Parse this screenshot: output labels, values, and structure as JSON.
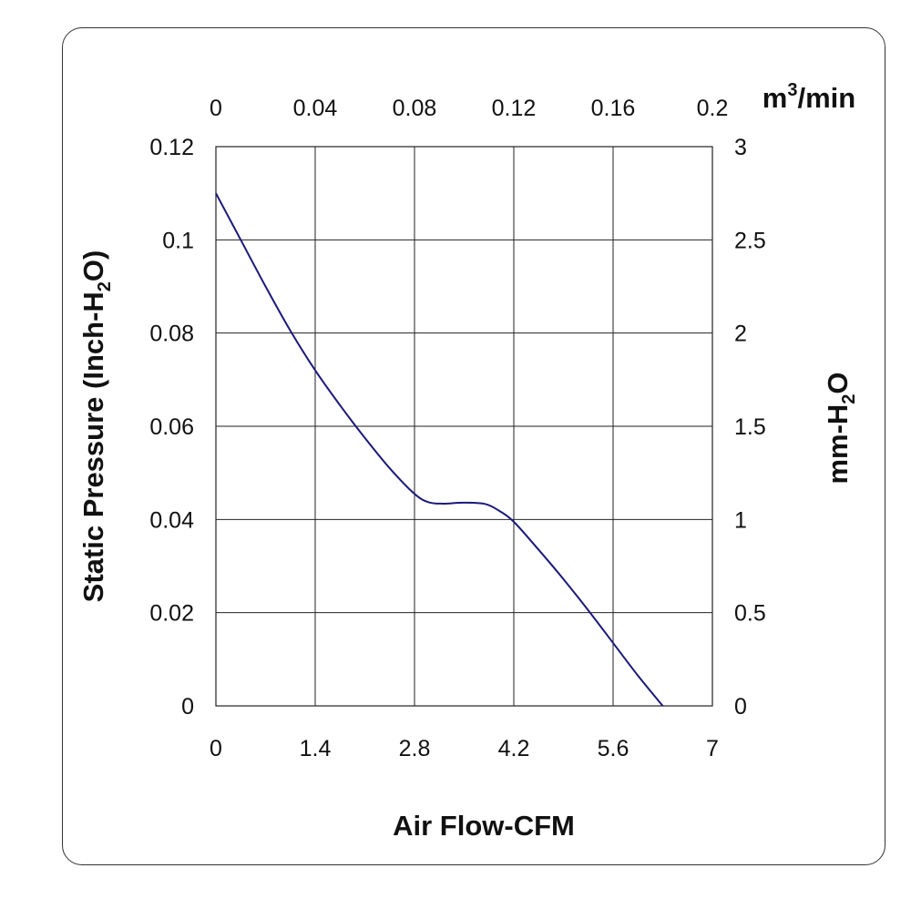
{
  "chart_data": {
    "type": "line",
    "title": "",
    "xlabel": "Air Flow-CFM",
    "ylabel_left": {
      "prefix": "Static Pressure (Inch-H",
      "sub": "2",
      "suffix": "O)"
    },
    "ylabel_right": {
      "prefix": "mm-H",
      "sub": "2",
      "suffix": "O"
    },
    "x2label": {
      "prefix": "m",
      "sup": "3",
      "suffix": "/min"
    },
    "x_ticks": [
      "0",
      "1.4",
      "2.8",
      "4.2",
      "5.6",
      "7"
    ],
    "x2_ticks": [
      "0",
      "0.04",
      "0.08",
      "0.12",
      "0.16",
      "0.2"
    ],
    "y_ticks": [
      "0",
      "0.02",
      "0.04",
      "0.06",
      "0.08",
      "0.1",
      "0.12"
    ],
    "y2_ticks": [
      "0",
      "0.5",
      "1",
      "1.5",
      "2",
      "2.5",
      "3"
    ],
    "xlim": [
      0,
      7
    ],
    "ylim": [
      0,
      0.12
    ],
    "grid": true,
    "line_color": "#1a1a7a",
    "series": [
      {
        "x": [
          0,
          0.35,
          0.7,
          1.05,
          1.4,
          1.75,
          2.1,
          2.45,
          2.8,
          3.0,
          3.2,
          3.5,
          3.8,
          4.0,
          4.2,
          4.55,
          4.9,
          5.25,
          5.6,
          5.95,
          6.3
        ],
        "y": [
          0.11,
          0.1,
          0.09,
          0.0805,
          0.072,
          0.0645,
          0.0575,
          0.051,
          0.0455,
          0.0437,
          0.0434,
          0.0436,
          0.0433,
          0.0418,
          0.0395,
          0.0335,
          0.0272,
          0.0205,
          0.0135,
          0.0065,
          0.0
        ]
      }
    ]
  }
}
